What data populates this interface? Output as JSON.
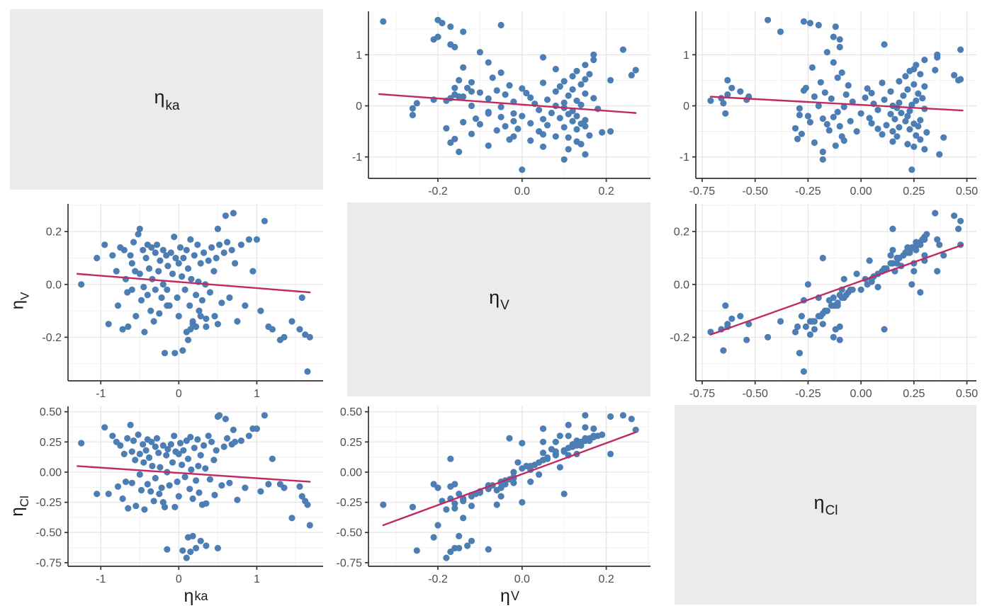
{
  "figure": {
    "kind": "pairs-plot of inter-individual random effects (ETAs)",
    "variables": [
      {
        "id": "ka",
        "label_base": "η",
        "label_sub": "ka"
      },
      {
        "id": "v",
        "label_base": "η",
        "label_sub": "V"
      },
      {
        "id": "cl",
        "label_base": "η",
        "label_sub": "Cl"
      }
    ]
  },
  "chart_data": {
    "type": "scatter",
    "layout": "3x3 scatterplot matrix; diagonal cells are gray label panels; off-diagonal cells show pairwise scatter with linear regression line; grid on (major + minor), legend none",
    "colors": {
      "point": "#4D7EB3",
      "regression_line": "#C12A61",
      "grid_major": "#E4E4E4",
      "grid_minor": "#F1F1F1",
      "axis_line": "#333333",
      "tick_text": "#4D4D4D",
      "diag_bg": "#EBEBEB",
      "panel_bg": "#FFFFFF"
    },
    "axes": {
      "ka": {
        "range": [
          -1.42,
          1.85
        ],
        "ticks": [
          -1,
          0,
          1
        ],
        "tick_labels": [
          "-1",
          "0",
          "1"
        ],
        "minor": [
          -0.5,
          0.5,
          1.5
        ]
      },
      "v": {
        "range": [
          -0.365,
          0.305
        ],
        "ticks": [
          -0.2,
          0.0,
          0.2
        ],
        "tick_labels": [
          "-0.2",
          "0.0",
          "0.2"
        ],
        "minor": [
          -0.3,
          -0.1,
          0.1,
          0.3
        ]
      },
      "cl": {
        "range": [
          -0.78,
          0.545
        ],
        "ticks": [
          -0.75,
          -0.5,
          -0.25,
          0.0,
          0.25,
          0.5
        ],
        "tick_labels": [
          "-0.75",
          "-0.50",
          "-0.25",
          "0.00",
          "0.25",
          "0.50"
        ],
        "minor": [
          -0.625,
          -0.375,
          -0.125,
          0.125,
          0.375
        ]
      }
    },
    "panels": [
      {
        "row": 1,
        "col": 2,
        "x": "v",
        "y": "ka",
        "regression": [
          [
            -0.34,
            0.23
          ],
          [
            0.27,
            -0.14
          ]
        ]
      },
      {
        "row": 1,
        "col": 3,
        "x": "cl",
        "y": "ka",
        "regression": [
          [
            -0.71,
            0.18
          ],
          [
            0.48,
            -0.09
          ]
        ]
      },
      {
        "row": 2,
        "col": 1,
        "x": "ka",
        "y": "v",
        "regression": [
          [
            -1.3,
            0.04
          ],
          [
            1.68,
            -0.03
          ]
        ]
      },
      {
        "row": 2,
        "col": 3,
        "x": "cl",
        "y": "v",
        "regression": [
          [
            -0.71,
            -0.19
          ],
          [
            0.48,
            0.15
          ]
        ]
      },
      {
        "row": 3,
        "col": 1,
        "x": "ka",
        "y": "cl",
        "regression": [
          [
            -1.3,
            0.05
          ],
          [
            1.68,
            -0.08
          ]
        ]
      },
      {
        "row": 3,
        "col": 2,
        "x": "v",
        "y": "cl",
        "regression": [
          [
            -0.33,
            -0.44
          ],
          [
            0.27,
            0.33
          ]
        ]
      }
    ],
    "points_columns": [
      "eta_ka",
      "eta_V",
      "eta_Cl"
    ],
    "points": [
      [
        -1.25,
        0.0,
        0.24
      ],
      [
        -1.05,
        0.1,
        -0.18
      ],
      [
        -0.95,
        0.15,
        0.37
      ],
      [
        -0.9,
        -0.15,
        -0.18
      ],
      [
        -0.85,
        0.11,
        0.3
      ],
      [
        -0.8,
        0.05,
        0.25
      ],
      [
        -0.78,
        -0.08,
        -0.12
      ],
      [
        -0.75,
        0.14,
        0.22
      ],
      [
        -0.72,
        -0.17,
        -0.22
      ],
      [
        -0.7,
        0.13,
        0.15
      ],
      [
        -0.68,
        0.02,
        -0.08
      ],
      [
        -0.66,
        -0.03,
        0.28
      ],
      [
        -0.65,
        -0.16,
        -0.3
      ],
      [
        -0.62,
        0.11,
        0.39
      ],
      [
        -0.6,
        0.08,
        0.17
      ],
      [
        -0.6,
        -0.02,
        -0.09
      ],
      [
        -0.58,
        0.16,
        0.26
      ],
      [
        -0.56,
        0.05,
        0.1
      ],
      [
        -0.55,
        -0.12,
        -0.28
      ],
      [
        -0.52,
        0.19,
        0.31
      ],
      [
        -0.5,
        0.21,
        0.15
      ],
      [
        -0.5,
        0.04,
        -0.02
      ],
      [
        -0.48,
        -0.06,
        -0.15
      ],
      [
        -0.46,
        0.13,
        0.23
      ],
      [
        -0.45,
        -0.01,
        0.08
      ],
      [
        -0.44,
        -0.18,
        -0.31
      ],
      [
        -0.42,
        0.1,
        0.18
      ],
      [
        -0.4,
        0.15,
        0.27
      ],
      [
        -0.4,
        -0.04,
        -0.1
      ],
      [
        -0.38,
        0.06,
        0.12
      ],
      [
        -0.36,
        -0.1,
        -0.16
      ],
      [
        -0.35,
        0.14,
        0.25
      ],
      [
        -0.34,
        0.02,
        0.05
      ],
      [
        -0.32,
        -0.14,
        -0.24
      ],
      [
        -0.3,
        0.12,
        0.21
      ],
      [
        -0.3,
        -0.02,
        -0.05
      ],
      [
        -0.28,
        0.15,
        0.28
      ],
      [
        -0.26,
        0.05,
        0.16
      ],
      [
        -0.25,
        -0.11,
        -0.18
      ],
      [
        -0.24,
        0.09,
        0.04
      ],
      [
        -0.22,
        -0.05,
        -0.13
      ],
      [
        -0.2,
        0.13,
        0.22
      ],
      [
        -0.2,
        0.0,
        -0.25
      ],
      [
        -0.18,
        -0.26,
        -0.29
      ],
      [
        -0.16,
        0.11,
        0.14
      ],
      [
        -0.15,
        -0.08,
        -0.64
      ],
      [
        -0.15,
        -0.02,
        0.0
      ],
      [
        -0.14,
        0.07,
        0.19
      ],
      [
        -0.12,
        -0.08,
        -0.11
      ],
      [
        -0.1,
        0.12,
        0.23
      ],
      [
        -0.08,
        0.04,
        0.08
      ],
      [
        -0.06,
        0.18,
        0.3
      ],
      [
        -0.05,
        -0.26,
        -0.29
      ],
      [
        -0.04,
        0.1,
        0.17
      ],
      [
        -0.02,
        -0.05,
        -0.08
      ],
      [
        0.0,
        0.08,
        0.15
      ],
      [
        0.0,
        -0.12,
        -0.2
      ],
      [
        0.02,
        0.14,
        0.24
      ],
      [
        0.04,
        0.03,
        0.06
      ],
      [
        0.05,
        -0.25,
        -0.65
      ],
      [
        0.06,
        0.1,
        0.18
      ],
      [
        0.08,
        -0.02,
        -0.04
      ],
      [
        0.1,
        0.13,
        0.26
      ],
      [
        0.1,
        -0.18,
        -0.71
      ],
      [
        0.12,
        -0.21,
        -0.54
      ],
      [
        0.12,
        0.06,
        0.11
      ],
      [
        0.14,
        -0.08,
        -0.14
      ],
      [
        0.15,
        0.17,
        0.29
      ],
      [
        0.15,
        -0.17,
        -0.66
      ],
      [
        0.16,
        0.02,
        0.02
      ],
      [
        0.18,
        -0.14,
        -0.22
      ],
      [
        0.18,
        -0.15,
        -0.53
      ],
      [
        0.2,
        0.11,
        0.2
      ],
      [
        0.22,
        -0.04,
        -0.07
      ],
      [
        0.22,
        -0.16,
        -0.63
      ],
      [
        0.24,
        0.15,
        0.27
      ],
      [
        0.25,
        0.01,
        0.05
      ],
      [
        0.26,
        -0.1,
        -0.17
      ],
      [
        0.28,
        0.08,
        0.14
      ],
      [
        0.28,
        -0.12,
        -0.57
      ],
      [
        0.3,
        -0.06,
        -0.27
      ],
      [
        0.32,
        0.12,
        0.22
      ],
      [
        0.34,
        0.0,
        0.03
      ],
      [
        0.35,
        -0.16,
        -0.26
      ],
      [
        0.35,
        -0.13,
        -0.61
      ],
      [
        0.38,
        0.09,
        0.3
      ],
      [
        0.4,
        -0.03,
        -0.06
      ],
      [
        0.42,
        0.14,
        0.25
      ],
      [
        0.45,
        0.05,
        0.1
      ],
      [
        0.46,
        -0.12,
        -0.19
      ],
      [
        0.48,
        0.1,
        0.18
      ],
      [
        0.5,
        0.21,
        0.46
      ],
      [
        0.5,
        -0.15,
        -0.63
      ],
      [
        0.52,
        0.15,
        0.47
      ],
      [
        0.55,
        -0.07,
        -0.11
      ],
      [
        0.58,
        0.12,
        0.21
      ],
      [
        0.6,
        0.26,
        0.44
      ],
      [
        0.62,
        0.16,
        0.28
      ],
      [
        0.65,
        -0.05,
        -0.09
      ],
      [
        0.68,
        0.13,
        0.23
      ],
      [
        0.7,
        0.27,
        0.35
      ],
      [
        0.72,
        0.08,
        0.25
      ],
      [
        0.75,
        -0.14,
        -0.23
      ],
      [
        0.8,
        0.15,
        0.26
      ],
      [
        0.85,
        -0.08,
        -0.13
      ],
      [
        0.9,
        0.17,
        0.3
      ],
      [
        0.95,
        0.05,
        0.36
      ],
      [
        1.0,
        0.17,
        0.36
      ],
      [
        1.05,
        -0.1,
        -0.16
      ],
      [
        1.1,
        0.24,
        0.47
      ],
      [
        1.15,
        -0.16,
        -0.1
      ],
      [
        1.2,
        -0.17,
        0.11
      ],
      [
        1.3,
        -0.21,
        -0.1
      ],
      [
        1.35,
        -0.2,
        -0.13
      ],
      [
        1.45,
        -0.14,
        -0.38
      ],
      [
        1.55,
        -0.17,
        -0.12
      ],
      [
        1.58,
        -0.05,
        -0.2
      ],
      [
        1.62,
        -0.19,
        -0.24
      ],
      [
        1.65,
        -0.33,
        -0.27
      ],
      [
        1.68,
        -0.2,
        -0.44
      ]
    ]
  }
}
